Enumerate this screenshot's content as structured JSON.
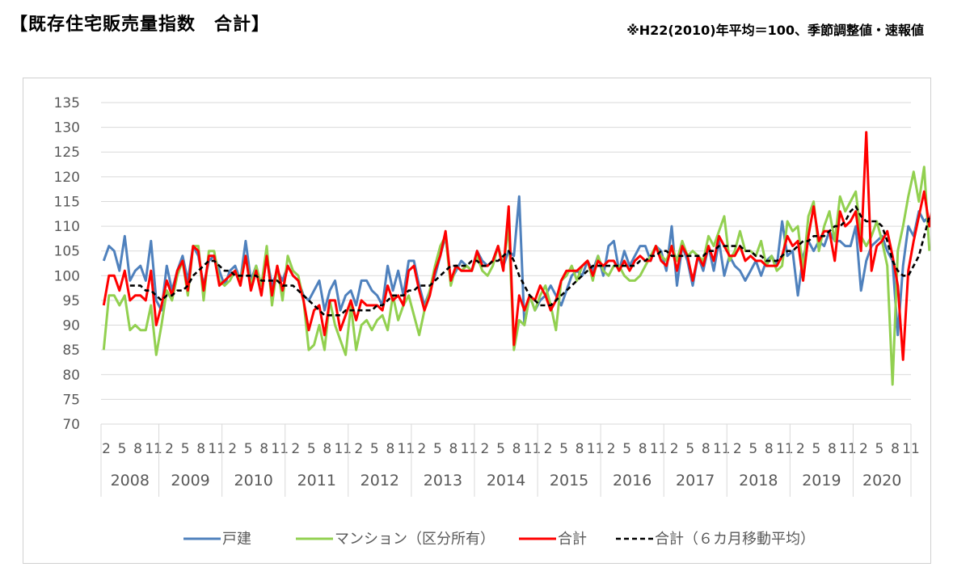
{
  "header": {
    "title": "【既存住宅販売量指数　合計】",
    "note": "※H22(2010)年平均＝100、季節調整値・速報値"
  },
  "colors": {
    "detached": "#4f81bd",
    "mansion": "#92d050",
    "total": "#ff0000",
    "moving_avg": "#000000",
    "grid": "#d9d9d9",
    "axis_text": "#595959"
  },
  "chart_data": {
    "type": "line",
    "title": "",
    "xlabel": "",
    "ylabel": "",
    "ylim": [
      70,
      135
    ],
    "yticks": [
      70,
      75,
      80,
      85,
      90,
      95,
      100,
      105,
      110,
      115,
      120,
      125,
      130,
      135
    ],
    "grid": "horizontal",
    "legend_position": "bottom",
    "x_start": "2008-02",
    "x_months": 154,
    "years": [
      "2008",
      "2009",
      "2010",
      "2011",
      "2012",
      "2013",
      "2014",
      "2015",
      "2016",
      "2017",
      "2018",
      "2019",
      "2020"
    ],
    "month_tick_labels": [
      "2",
      "5",
      "8",
      "11"
    ],
    "last_year_month_labels": [
      "2",
      "5",
      "8",
      "11"
    ],
    "series": [
      {
        "name": "戸建",
        "values": [
          103,
          106,
          105,
          101,
          108,
          99,
          101,
          102,
          99,
          107,
          95,
          93,
          102,
          97,
          101,
          104,
          99,
          106,
          104,
          98,
          103,
          104,
          101,
          98,
          101,
          102,
          99,
          107,
          99,
          102,
          98,
          104,
          98,
          101,
          99,
          102,
          100,
          99,
          96,
          95,
          97,
          99,
          93,
          97,
          99,
          93,
          96,
          97,
          94,
          99,
          99,
          97,
          96,
          94,
          102,
          97,
          101,
          96,
          103,
          103,
          98,
          94,
          97,
          100,
          104,
          108,
          99,
          101,
          103,
          102,
          101,
          105,
          103,
          102,
          103,
          106,
          102,
          105,
          104,
          116,
          90,
          96,
          93,
          95,
          96,
          98,
          96,
          94,
          97,
          100,
          101,
          100,
          103,
          101,
          104,
          100,
          106,
          107,
          101,
          105,
          102,
          104,
          106,
          106,
          103,
          106,
          105,
          101,
          110,
          98,
          106,
          103,
          98,
          104,
          101,
          106,
          101,
          107,
          100,
          104,
          102,
          101,
          99,
          101,
          103,
          100,
          103,
          104,
          102,
          111,
          104,
          105,
          96,
          104,
          107,
          105,
          107,
          106,
          109,
          107,
          107,
          106,
          106,
          110,
          97,
          103,
          106,
          107,
          108,
          105,
          103,
          88,
          102,
          110,
          108,
          113,
          111,
          112
        ]
      },
      {
        "name": "マンション（区分所有）",
        "values": [
          85,
          96,
          96,
          94,
          96,
          89,
          90,
          89,
          89,
          94,
          84,
          90,
          97,
          95,
          100,
          103,
          96,
          106,
          106,
          95,
          105,
          105,
          99,
          98,
          99,
          101,
          99,
          104,
          98,
          102,
          98,
          106,
          94,
          102,
          95,
          104,
          101,
          100,
          95,
          85,
          86,
          90,
          85,
          95,
          90,
          87,
          84,
          94,
          85,
          90,
          91,
          89,
          91,
          92,
          89,
          96,
          91,
          94,
          96,
          92,
          88,
          93,
          97,
          102,
          106,
          108,
          98,
          102,
          101,
          102,
          101,
          104,
          101,
          100,
          102,
          106,
          102,
          110,
          85,
          91,
          90,
          96,
          93,
          96,
          98,
          94,
          89,
          99,
          100,
          102,
          99,
          102,
          103,
          99,
          104,
          101,
          100,
          102,
          102,
          100,
          99,
          99,
          100,
          102,
          104,
          106,
          104,
          103,
          106,
          103,
          107,
          104,
          105,
          104,
          103,
          108,
          106,
          109,
          112,
          103,
          105,
          109,
          105,
          105,
          104,
          107,
          102,
          104,
          101,
          102,
          111,
          109,
          110,
          101,
          112,
          115,
          105,
          110,
          113,
          107,
          116,
          113,
          115,
          117,
          108,
          106,
          108,
          111,
          107,
          102,
          78,
          105,
          110,
          116,
          121,
          115,
          122,
          105
        ]
      },
      {
        "name": "合計",
        "values": [
          94,
          100,
          100,
          97,
          101,
          95,
          96,
          96,
          95,
          101,
          90,
          94,
          99,
          96,
          101,
          103,
          97,
          106,
          105,
          97,
          104,
          104,
          98,
          99,
          100,
          101,
          98,
          104,
          97,
          101,
          96,
          104,
          96,
          102,
          97,
          102,
          100,
          99,
          95,
          89,
          93,
          94,
          88,
          95,
          95,
          89,
          92,
          95,
          91,
          95,
          94,
          94,
          94,
          93,
          98,
          95,
          96,
          94,
          101,
          102,
          97,
          93,
          96,
          101,
          104,
          109,
          99,
          102,
          101,
          101,
          101,
          105,
          102,
          102,
          103,
          106,
          101,
          114,
          86,
          96,
          93,
          96,
          95,
          98,
          96,
          93,
          95,
          99,
          101,
          101,
          101,
          102,
          103,
          100,
          103,
          102,
          103,
          103,
          101,
          103,
          101,
          103,
          104,
          103,
          103,
          106,
          103,
          102,
          106,
          101,
          106,
          104,
          99,
          104,
          102,
          106,
          103,
          108,
          106,
          104,
          104,
          106,
          103,
          104,
          103,
          103,
          102,
          102,
          102,
          104,
          108,
          106,
          107,
          99,
          108,
          114,
          107,
          109,
          109,
          103,
          113,
          110,
          111,
          113,
          105,
          129,
          101,
          106,
          107,
          109,
          104,
          98,
          83,
          101,
          107,
          112,
          117,
          110,
          117,
          105
        ]
      },
      {
        "name": "合計（６カ月移動平均）",
        "values": [
          null,
          null,
          null,
          null,
          null,
          98,
          98,
          98,
          97,
          97,
          96,
          95,
          96,
          96,
          97,
          97,
          98,
          100,
          101,
          102,
          103,
          103,
          102,
          101,
          101,
          100,
          100,
          100,
          100,
          100,
          99,
          99,
          99,
          99,
          98,
          98,
          98,
          97,
          96,
          95,
          94,
          93,
          92,
          92,
          92,
          92,
          93,
          93,
          93,
          93,
          93,
          93,
          94,
          94,
          95,
          96,
          96,
          96,
          97,
          97,
          98,
          98,
          98,
          99,
          100,
          101,
          102,
          102,
          102,
          102,
          103,
          103,
          102,
          102,
          103,
          103,
          104,
          105,
          103,
          100,
          98,
          96,
          95,
          94,
          94,
          94,
          95,
          96,
          97,
          98,
          99,
          100,
          101,
          102,
          102,
          102,
          102,
          102,
          102,
          102,
          102,
          102,
          103,
          103,
          104,
          104,
          105,
          105,
          104,
          104,
          104,
          104,
          104,
          104,
          104,
          105,
          105,
          106,
          106,
          106,
          106,
          106,
          105,
          105,
          104,
          104,
          103,
          103,
          103,
          104,
          105,
          105,
          106,
          107,
          107,
          108,
          108,
          108,
          109,
          110,
          110,
          111,
          113,
          114,
          112,
          111,
          111,
          111,
          110,
          107,
          103,
          101,
          100,
          100,
          102,
          104,
          108,
          112
        ]
      }
    ]
  }
}
